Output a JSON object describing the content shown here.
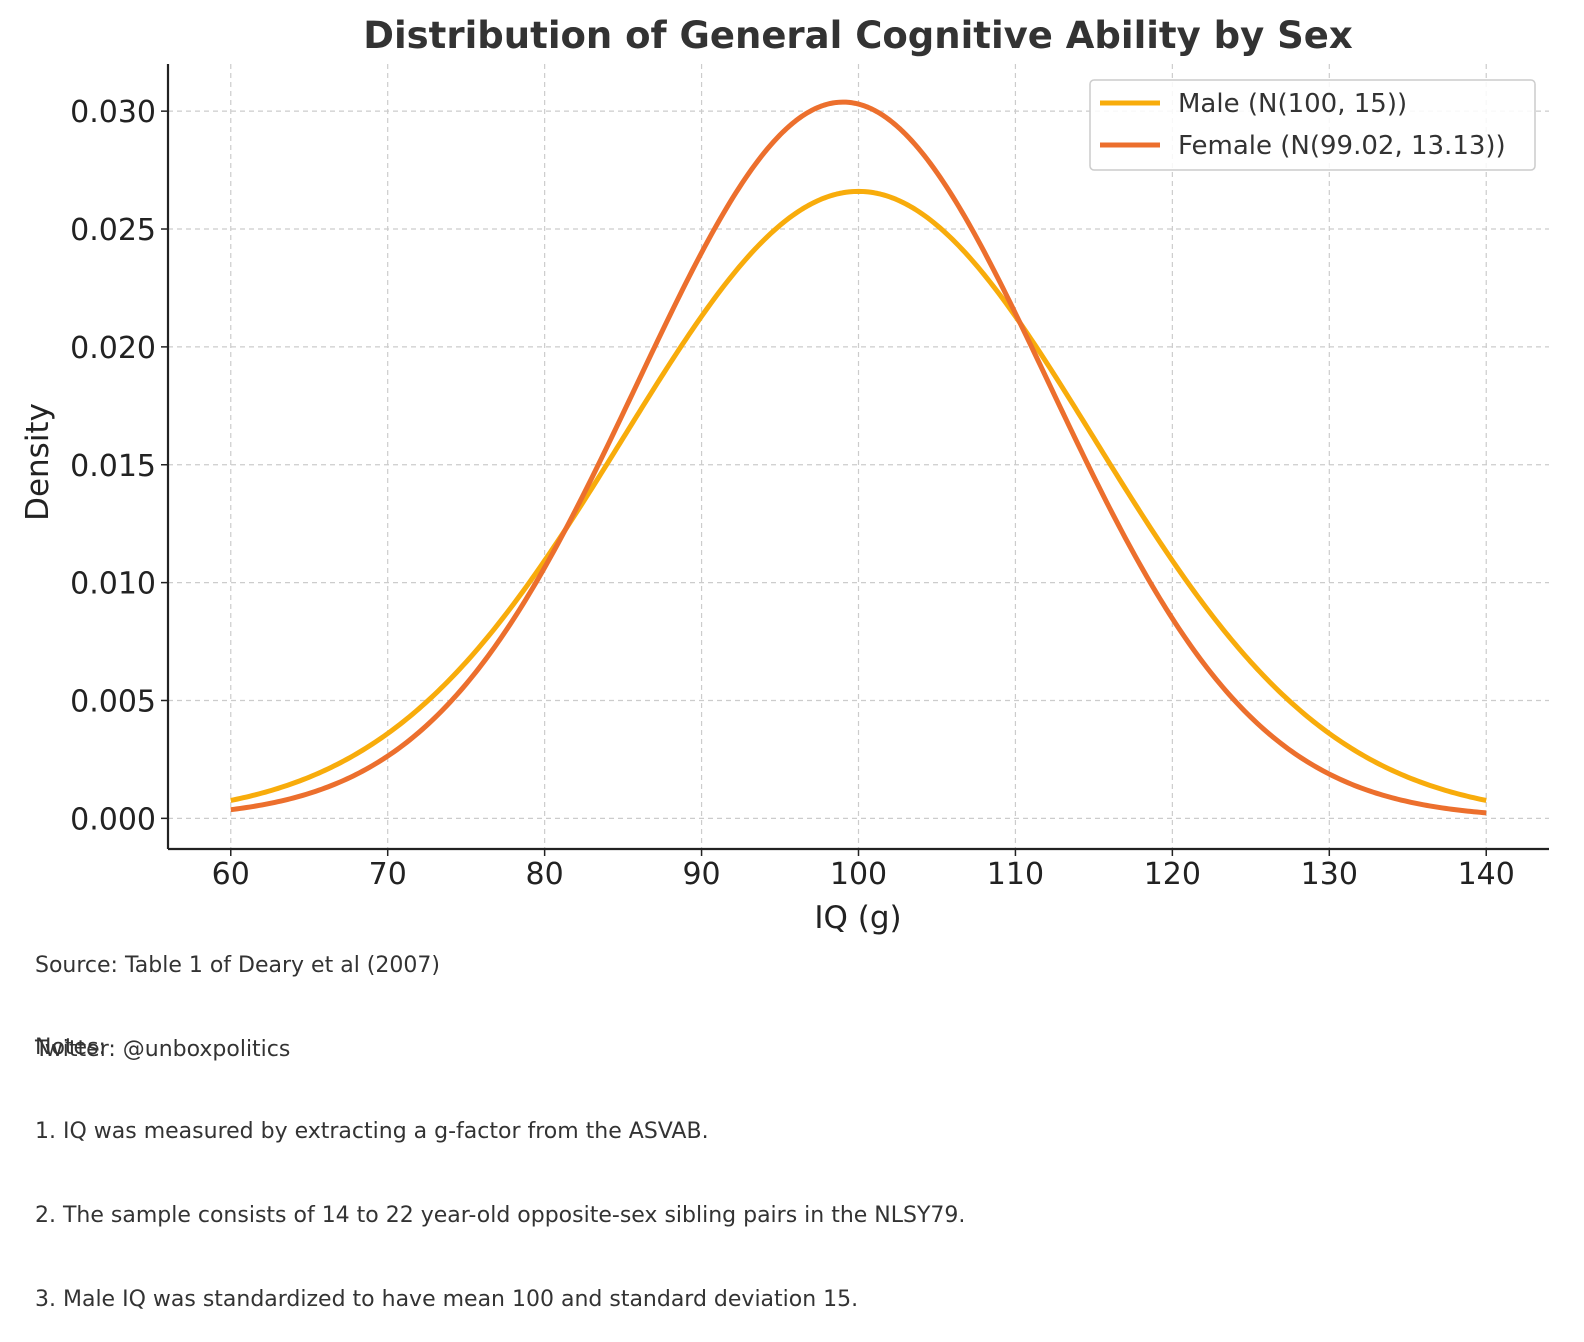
{
  "chart_data": {
    "type": "line",
    "title": "Distribution of General Cognitive Ability by Sex",
    "xlabel": "IQ (g)",
    "ylabel": "Density",
    "xlim": [
      56,
      144
    ],
    "ylim": [
      -0.0013,
      0.032
    ],
    "x_ticks": [
      60,
      70,
      80,
      90,
      100,
      110,
      120,
      130,
      140
    ],
    "x_tick_labels": [
      "60",
      "70",
      "80",
      "90",
      "100",
      "110",
      "120",
      "130",
      "140"
    ],
    "y_ticks": [
      0.0,
      0.005,
      0.01,
      0.015,
      0.02,
      0.025,
      0.03
    ],
    "y_tick_labels": [
      "0.000",
      "0.005",
      "0.010",
      "0.015",
      "0.020",
      "0.025",
      "0.030"
    ],
    "grid": true,
    "legend_position": "top-right",
    "x_range": [
      60,
      140
    ],
    "series": [
      {
        "name": "Male (N(100, 15))",
        "distribution": "normal",
        "mean": 100,
        "sd": 15,
        "color": "#F8AC0B"
      },
      {
        "name": "Female (N(99.02, 13.13))",
        "distribution": "normal",
        "mean": 99.02,
        "sd": 13.13,
        "color": "#EC6F2D"
      }
    ]
  },
  "notes": {
    "source": "Source: Table 1 of Deary et al (2007)",
    "twitter": "Twitter: @unboxpolitics",
    "heading": "Notes:",
    "items": [
      "1. IQ was measured by extracting a g-factor from the ASVAB.",
      "2. The sample consists of 14 to 22 year-old opposite-sex sibling pairs in the NLSY79.",
      "3. Male IQ was standardized to have mean 100 and standard deviation 15."
    ]
  },
  "colors": {
    "axis": "#222222",
    "grid": "#cccccc",
    "legend_border": "#cccccc"
  }
}
